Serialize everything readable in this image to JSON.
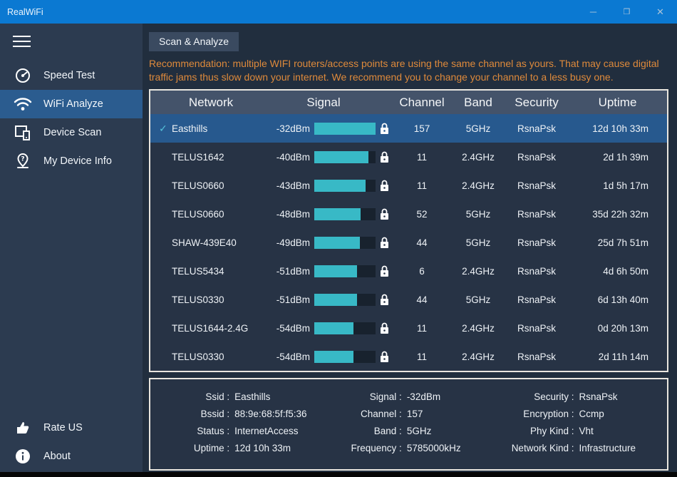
{
  "window": {
    "title": "RealWiFi",
    "controls": {
      "minimize": "─",
      "maximize": "❒",
      "close": "✕"
    }
  },
  "colors": {
    "titlebar": "#0b79d2",
    "sidebar": "#2c3b50",
    "selected_blue": "#2b5c8f",
    "main_bg": "#212e3e",
    "table_header": "#44536a",
    "table_bg": "#273345",
    "selected_row": "#27598e",
    "signal_bar": "#38b9c6",
    "warning_orange": "#df8a3b",
    "table_border": "#e9e6df"
  },
  "sidebar": {
    "items": [
      {
        "label": "Speed Test",
        "icon": "speedometer-icon",
        "selected": false
      },
      {
        "label": "WiFi Analyze",
        "icon": "wifi-icon",
        "selected": true
      },
      {
        "label": "Device Scan",
        "icon": "devices-icon",
        "selected": false
      },
      {
        "label": "My Device Info",
        "icon": "map-pin-question-icon",
        "selected": false
      }
    ],
    "bottom_items": [
      {
        "label": "Rate US",
        "icon": "thumbs-up-icon"
      },
      {
        "label": "About",
        "icon": "info-icon"
      }
    ]
  },
  "main": {
    "scan_button": "Scan & Analyze",
    "recommendation": "Recommendation: multiple WIFI routers/access points are using the same channel as yours. That may cause digital traffic jams thus slow down your internet. We recommend you to change your channel to a less busy one.",
    "table": {
      "headers": {
        "network": "Network",
        "signal": "Signal",
        "channel": "Channel",
        "band": "Band",
        "security": "Security",
        "uptime": "Uptime"
      },
      "check_glyph": "✓",
      "rows": [
        {
          "network": "Easthills",
          "signal": "-32dBm",
          "signal_percent": 100,
          "channel": "157",
          "band": "5GHz",
          "security": "RsnaPsk",
          "uptime": "12d 10h 33m",
          "selected": true
        },
        {
          "network": "TELUS1642",
          "signal": "-40dBm",
          "signal_percent": 88,
          "channel": "11",
          "band": "2.4GHz",
          "security": "RsnaPsk",
          "uptime": "2d 1h 39m",
          "selected": false
        },
        {
          "network": "TELUS0660",
          "signal": "-43dBm",
          "signal_percent": 84,
          "channel": "11",
          "band": "2.4GHz",
          "security": "RsnaPsk",
          "uptime": "1d 5h 17m",
          "selected": false
        },
        {
          "network": "TELUS0660",
          "signal": "-48dBm",
          "signal_percent": 76,
          "channel": "52",
          "band": "5GHz",
          "security": "RsnaPsk",
          "uptime": "35d 22h 32m",
          "selected": false
        },
        {
          "network": "SHAW-439E40",
          "signal": "-49dBm",
          "signal_percent": 74,
          "channel": "44",
          "band": "5GHz",
          "security": "RsnaPsk",
          "uptime": "25d 7h 51m",
          "selected": false
        },
        {
          "network": "TELUS5434",
          "signal": "-51dBm",
          "signal_percent": 70,
          "channel": "6",
          "band": "2.4GHz",
          "security": "RsnaPsk",
          "uptime": "4d 6h 50m",
          "selected": false
        },
        {
          "network": "TELUS0330",
          "signal": "-51dBm",
          "signal_percent": 70,
          "channel": "44",
          "band": "5GHz",
          "security": "RsnaPsk",
          "uptime": "6d 13h 40m",
          "selected": false
        },
        {
          "network": "TELUS1644-2.4G",
          "signal": "-54dBm",
          "signal_percent": 64,
          "channel": "11",
          "band": "2.4GHz",
          "security": "RsnaPsk",
          "uptime": "0d 20h 13m",
          "selected": false
        },
        {
          "network": "TELUS0330",
          "signal": "-54dBm",
          "signal_percent": 64,
          "channel": "11",
          "band": "2.4GHz",
          "security": "RsnaPsk",
          "uptime": "2d 11h 14m",
          "selected": false
        }
      ]
    },
    "details": {
      "columns": [
        [
          {
            "label": "Ssid :",
            "value": "Easthills"
          },
          {
            "label": "Bssid :",
            "value": "88:9e:68:5f:f5:36"
          },
          {
            "label": "Status :",
            "value": "InternetAccess"
          },
          {
            "label": "Uptime :",
            "value": "12d 10h 33m"
          }
        ],
        [
          {
            "label": "Signal :",
            "value": "-32dBm"
          },
          {
            "label": "Channel :",
            "value": "157"
          },
          {
            "label": "Band :",
            "value": "5GHz"
          },
          {
            "label": "Frequency :",
            "value": "5785000kHz"
          }
        ],
        [
          {
            "label": "Security :",
            "value": "RsnaPsk"
          },
          {
            "label": "Encryption :",
            "value": "Ccmp"
          },
          {
            "label": "Phy Kind :",
            "value": "Vht"
          },
          {
            "label": "Network Kind :",
            "value": "Infrastructure"
          }
        ]
      ]
    }
  }
}
